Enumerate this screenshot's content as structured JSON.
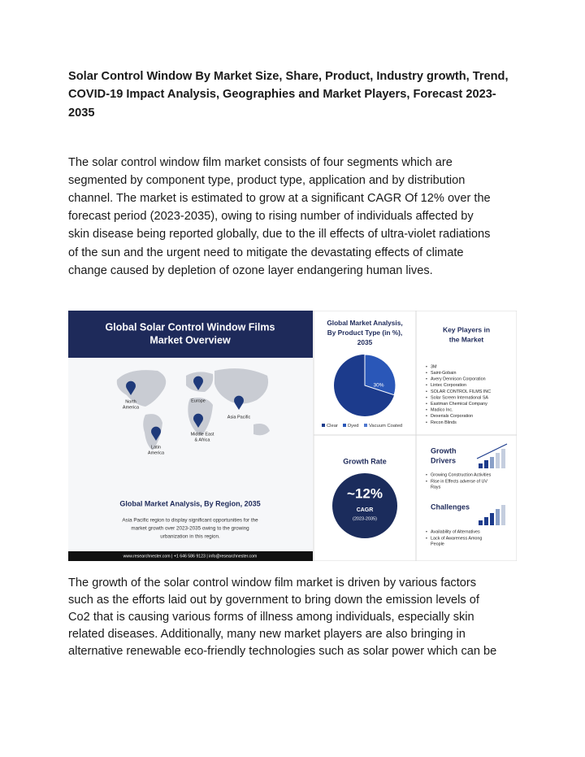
{
  "header": {
    "title_lines": [
      "Solar Control Window By Market Size, Share, Product, Industry growth, Trend,",
      "COVID-19 Impact Analysis, Geographies and Market Players, Forecast 2023-",
      "2035"
    ]
  },
  "paragraphs": [
    [
      "The solar control window film market consists of four segments which are",
      "segmented by component type, product type, application and by distribution",
      "channel. The market is estimated to grow at a significant CAGR Of 12% over the",
      "forecast period (2023-2035), owing to rising number of individuals affected by",
      "skin disease being reported globally, due to the ill effects of ultra-violet radiations",
      "of the sun and the urgent need to mitigate the devastating effects of climate",
      "change caused by depletion of ozone layer endangering human lives."
    ],
    [
      "The growth of the solar control window film market is driven by various factors",
      "such as the efforts laid out by government to bring down the emission levels of",
      "Co2 that is causing various forms of illness among individuals, especially skin",
      "related diseases. Additionally, many new market players are also bringing in",
      "alternative renewable eco-friendly technologies such as solar power which can be"
    ]
  ],
  "infographic": {
    "overview": {
      "title_lines": [
        "Global Solar Control Window Films",
        "Market Overview"
      ],
      "regions": [
        "North",
        "America",
        "Europe",
        "Asia Pacific",
        "Middle East",
        "& Africa",
        "Latin",
        "America"
      ],
      "region_title": "Global Market Analysis, By Region, 2035",
      "region_text": [
        "Asia Pacific region to display significant opportunities for the",
        "market growth over 2023-2035  owing to the growing",
        "urbanization in this region."
      ],
      "footer": "www.researchnester.com | +1 646 586 9123 | info@researchnester.com"
    },
    "product": {
      "title_lines": [
        "Global Market Analysis,",
        "By Product Type (in %),",
        "2035"
      ],
      "slice_label": "30%",
      "legend": [
        "Clear",
        "Dyed",
        "Vacuum Coated"
      ]
    },
    "key_players": {
      "title_lines": [
        "Key Players in",
        "the Market"
      ],
      "items": [
        "3M",
        "Saint-Gobain",
        "Avery Dennison Corporation",
        "Lintec Corporation",
        "SOLAR CONTROL FILMS INC",
        "Solar Screen International SA",
        "Eastman Chemical Company",
        "Madico Inc.",
        "Dexerials Corporation",
        "Recon Blinds"
      ]
    },
    "growth_rate": {
      "title": "Growth Rate",
      "value": "~12%",
      "label": "CAGR",
      "period": "(2023-2035)"
    },
    "growth_drivers": {
      "title_lines": [
        "Growth",
        "Drivers"
      ],
      "items": [
        "Growing Construction  Activities",
        "Rise in Effects adverse of UV",
        "Rays"
      ]
    },
    "challenges": {
      "title": "Challenges",
      "items": [
        "Availability of Alternatives",
        "Lack of Awareness Among",
        "People"
      ]
    }
  }
}
